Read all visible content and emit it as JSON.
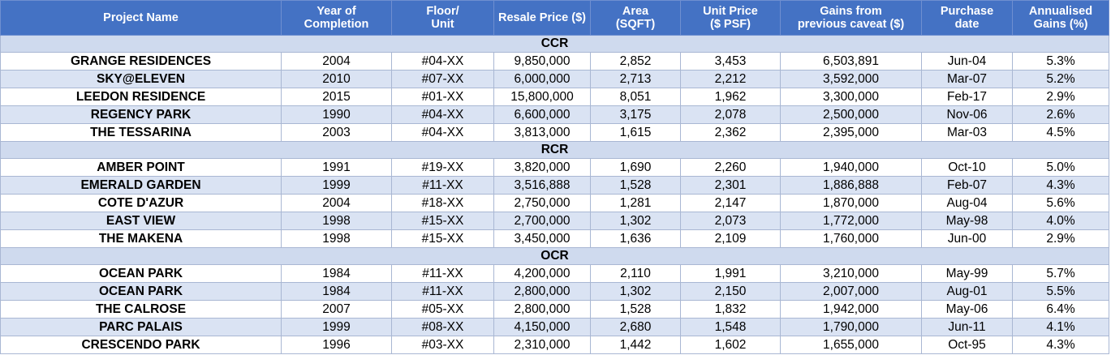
{
  "headers": [
    {
      "l1": "Project Name",
      "l2": ""
    },
    {
      "l1": "Year of",
      "l2": "Completion"
    },
    {
      "l1": "Floor/",
      "l2": "Unit"
    },
    {
      "l1": "Resale Price ($)",
      "l2": ""
    },
    {
      "l1": "Area",
      "l2": "(SQFT)"
    },
    {
      "l1": "Unit Price",
      "l2": "($ PSF)"
    },
    {
      "l1": "Gains from",
      "l2": "previous caveat ($)"
    },
    {
      "l1": "Purchase",
      "l2": "date"
    },
    {
      "l1": "Annualised",
      "l2": "Gains (%)"
    }
  ],
  "sections": [
    {
      "title": "CCR",
      "rows": [
        [
          "GRANGE RESIDENCES",
          "2004",
          "#04-XX",
          "9,850,000",
          "2,852",
          "3,453",
          "6,503,891",
          "Jun-04",
          "5.3%"
        ],
        [
          "SKY@ELEVEN",
          "2010",
          "#07-XX",
          "6,000,000",
          "2,713",
          "2,212",
          "3,592,000",
          "Mar-07",
          "5.2%"
        ],
        [
          "LEEDON RESIDENCE",
          "2015",
          "#01-XX",
          "15,800,000",
          "8,051",
          "1,962",
          "3,300,000",
          "Feb-17",
          "2.9%"
        ],
        [
          "REGENCY PARK",
          "1990",
          "#04-XX",
          "6,600,000",
          "3,175",
          "2,078",
          "2,500,000",
          "Nov-06",
          "2.6%"
        ],
        [
          "THE TESSARINA",
          "2003",
          "#04-XX",
          "3,813,000",
          "1,615",
          "2,362",
          "2,395,000",
          "Mar-03",
          "4.5%"
        ]
      ]
    },
    {
      "title": "RCR",
      "rows": [
        [
          "AMBER POINT",
          "1991",
          "#19-XX",
          "3,820,000",
          "1,690",
          "2,260",
          "1,940,000",
          "Oct-10",
          "5.0%"
        ],
        [
          "EMERALD GARDEN",
          "1999",
          "#11-XX",
          "3,516,888",
          "1,528",
          "2,301",
          "1,886,888",
          "Feb-07",
          "4.3%"
        ],
        [
          "COTE D'AZUR",
          "2004",
          "#18-XX",
          "2,750,000",
          "1,281",
          "2,147",
          "1,870,000",
          "Aug-04",
          "5.6%"
        ],
        [
          "EAST VIEW",
          "1998",
          "#15-XX",
          "2,700,000",
          "1,302",
          "2,073",
          "1,772,000",
          "May-98",
          "4.0%"
        ],
        [
          "THE MAKENA",
          "1998",
          "#15-XX",
          "3,450,000",
          "1,636",
          "2,109",
          "1,760,000",
          "Jun-00",
          "2.9%"
        ]
      ]
    },
    {
      "title": "OCR",
      "rows": [
        [
          "OCEAN PARK",
          "1984",
          "#11-XX",
          "4,200,000",
          "2,110",
          "1,991",
          "3,210,000",
          "May-99",
          "5.7%"
        ],
        [
          "OCEAN PARK",
          "1984",
          "#11-XX",
          "2,800,000",
          "1,302",
          "2,150",
          "2,007,000",
          "Aug-01",
          "5.5%"
        ],
        [
          "THE CALROSE",
          "2007",
          "#05-XX",
          "2,800,000",
          "1,528",
          "1,832",
          "1,942,000",
          "May-06",
          "6.4%"
        ],
        [
          "PARC PALAIS",
          "1999",
          "#08-XX",
          "4,150,000",
          "2,680",
          "1,548",
          "1,790,000",
          "Jun-11",
          "4.1%"
        ],
        [
          "CRESCENDO PARK",
          "1996",
          "#03-XX",
          "2,310,000",
          "1,442",
          "1,602",
          "1,655,000",
          "Oct-95",
          "4.3%"
        ]
      ]
    }
  ]
}
